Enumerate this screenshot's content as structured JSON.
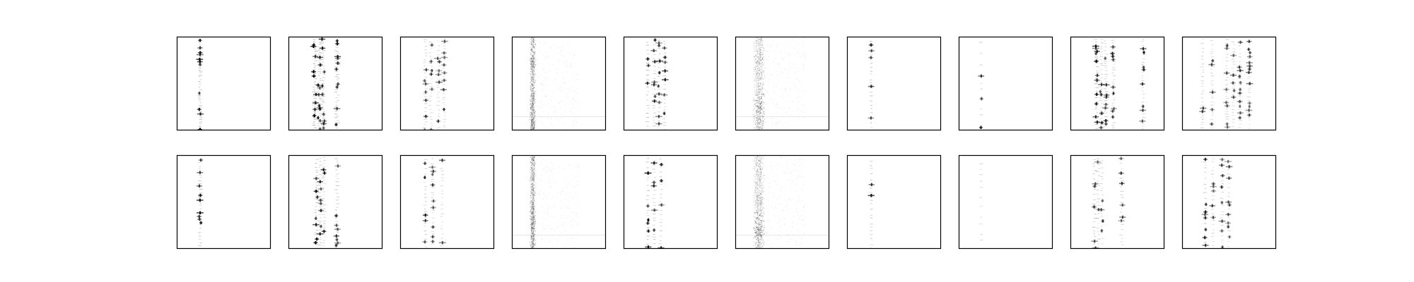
{
  "figure": {
    "background": "#ffffff",
    "frame_color": "#000000",
    "mark_color": "#000000",
    "rows": 2,
    "cols": 10,
    "axis_ticks": false,
    "axis_labels": false
  },
  "chart_data": {
    "type": "heatmap",
    "title": "",
    "xlabel": "",
    "ylabel": "",
    "xlim": [
      0,
      1
    ],
    "ylim": [
      0,
      1
    ],
    "grid": false,
    "panels": [
      {
        "row": 0,
        "col": 0,
        "style": "sparse",
        "columns": [
          0.25
        ],
        "spread": 0.02,
        "row_step": 0.025,
        "weight": 0.55
      },
      {
        "row": 0,
        "col": 1,
        "style": "sparse",
        "columns": [
          0.28,
          0.33,
          0.37,
          0.52
        ],
        "spread": 0.03,
        "row_step": 0.022,
        "weight": 0.6
      },
      {
        "row": 0,
        "col": 2,
        "style": "sparse",
        "columns": [
          0.27,
          0.33,
          0.41,
          0.47
        ],
        "spread": 0.02,
        "row_step": 0.035,
        "weight": 0.45
      },
      {
        "row": 0,
        "col": 3,
        "style": "noise",
        "columns": [
          0.22
        ],
        "spread": 0.05,
        "row_step": 0.02,
        "weight": 0.5
      },
      {
        "row": 0,
        "col": 4,
        "style": "sparse",
        "columns": [
          0.26,
          0.33,
          0.38,
          0.44
        ],
        "spread": 0.015,
        "row_step": 0.04,
        "weight": 0.55
      },
      {
        "row": 0,
        "col": 5,
        "style": "noise",
        "columns": [
          0.25
        ],
        "spread": 0.1,
        "row_step": 0.02,
        "weight": 0.45
      },
      {
        "row": 0,
        "col": 6,
        "style": "sparse",
        "columns": [
          0.26
        ],
        "spread": 0.01,
        "row_step": 0.045,
        "weight": 0.5
      },
      {
        "row": 0,
        "col": 7,
        "style": "sparse",
        "columns": [
          0.24
        ],
        "spread": 0.01,
        "row_step": 0.09,
        "weight": 0.45
      },
      {
        "row": 0,
        "col": 8,
        "style": "sparse",
        "columns": [
          0.28,
          0.33,
          0.38,
          0.46,
          0.78
        ],
        "spread": 0.02,
        "row_step": 0.03,
        "weight": 0.55
      },
      {
        "row": 0,
        "col": 9,
        "style": "sparse",
        "columns": [
          0.22,
          0.32,
          0.48,
          0.55,
          0.62,
          0.72
        ],
        "spread": 0.015,
        "row_step": 0.035,
        "weight": 0.45
      },
      {
        "row": 1,
        "col": 0,
        "style": "sparse",
        "columns": [
          0.25
        ],
        "spread": 0.02,
        "row_step": 0.03,
        "weight": 0.55
      },
      {
        "row": 1,
        "col": 1,
        "style": "sparse",
        "columns": [
          0.3,
          0.34,
          0.38,
          0.52
        ],
        "spread": 0.02,
        "row_step": 0.03,
        "weight": 0.55
      },
      {
        "row": 1,
        "col": 2,
        "style": "sparse",
        "columns": [
          0.27,
          0.35,
          0.45
        ],
        "spread": 0.015,
        "row_step": 0.04,
        "weight": 0.45
      },
      {
        "row": 1,
        "col": 3,
        "style": "noise",
        "columns": [
          0.22
        ],
        "spread": 0.05,
        "row_step": 0.02,
        "weight": 0.5
      },
      {
        "row": 1,
        "col": 4,
        "style": "sparse",
        "columns": [
          0.26,
          0.33,
          0.4
        ],
        "spread": 0.015,
        "row_step": 0.04,
        "weight": 0.55
      },
      {
        "row": 1,
        "col": 5,
        "style": "noise",
        "columns": [
          0.25
        ],
        "spread": 0.1,
        "row_step": 0.02,
        "weight": 0.45
      },
      {
        "row": 1,
        "col": 6,
        "style": "sparse",
        "columns": [
          0.26
        ],
        "spread": 0.01,
        "row_step": 0.045,
        "weight": 0.5
      },
      {
        "row": 1,
        "col": 7,
        "style": "sparse",
        "columns": [
          0.24
        ],
        "spread": 0.01,
        "row_step": 0.09,
        "weight": 0.45
      },
      {
        "row": 1,
        "col": 8,
        "style": "sparse",
        "columns": [
          0.26,
          0.3,
          0.34,
          0.55
        ],
        "spread": 0.02,
        "row_step": 0.04,
        "weight": 0.5
      },
      {
        "row": 1,
        "col": 9,
        "style": "sparse",
        "columns": [
          0.25,
          0.33,
          0.43,
          0.5
        ],
        "spread": 0.015,
        "row_step": 0.045,
        "weight": 0.45
      }
    ]
  }
}
